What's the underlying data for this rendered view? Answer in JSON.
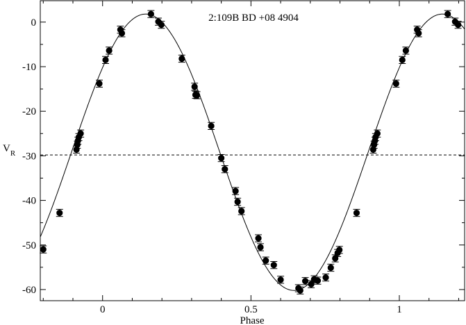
{
  "chart_data": {
    "type": "scatter",
    "title": "2:109B   BD +08 4904",
    "xlabel": "Phase",
    "ylabel_main": "V",
    "ylabel_sub": "R",
    "xlim": [
      -0.21,
      1.22
    ],
    "ylim": [
      -62.5,
      4.8
    ],
    "x_ticks": [
      0,
      0.5,
      1
    ],
    "x_tick_labels": [
      "0",
      "0.5",
      "1"
    ],
    "y_ticks": [
      0,
      -10,
      -20,
      -30,
      -40,
      -50,
      -60
    ],
    "y_tick_labels": [
      "0",
      "-10",
      "-20",
      "-30",
      "-40",
      "-50",
      "-60"
    ],
    "reference_line_y": -29.8,
    "fit_curve": {
      "type": "sinusoid",
      "gamma": -29.2,
      "amplitude": 31.0,
      "peak_phase": 0.145,
      "x_range": [
        -0.21,
        1.22
      ]
    },
    "series": [
      {
        "marker": "filled-circle",
        "error": 0.8,
        "x": [
          -0.2,
          -0.145,
          -0.088,
          -0.085,
          -0.083,
          -0.08,
          -0.074,
          -0.011,
          0.01,
          0.022,
          0.06,
          0.065,
          0.163,
          0.188,
          0.198,
          0.267,
          0.31,
          0.313,
          0.318,
          0.366,
          0.4,
          0.412,
          0.448,
          0.455,
          0.468,
          0.525,
          0.532,
          0.55,
          0.577,
          0.6,
          0.66,
          0.666,
          0.683,
          0.703,
          0.713,
          0.725,
          0.752,
          0.769,
          0.784,
          0.792,
          0.798,
          0.856,
          0.912,
          0.915,
          0.918,
          0.92,
          0.926,
          0.989,
          1.01,
          1.022,
          1.06,
          1.065,
          1.163,
          1.188,
          1.198
        ],
        "y": [
          -51,
          -42.8,
          -28.6,
          -27.5,
          -26.6,
          -25.8,
          -25,
          -13.8,
          -8.5,
          -6.4,
          -1.7,
          -2.5,
          1.8,
          0.1,
          -0.6,
          -8.2,
          -14.5,
          -16.3,
          -16.4,
          -23.3,
          -30.5,
          -33,
          -37.9,
          -40.3,
          -42.4,
          -48.5,
          -50.5,
          -53.5,
          -54.5,
          -57.8,
          -59.7,
          -60.2,
          -58.1,
          -58.8,
          -57.7,
          -58,
          -57.3,
          -55.1,
          -53,
          -51.8,
          -51.1,
          -42.8,
          -28.6,
          -27.5,
          -26.6,
          -25.8,
          -25,
          -13.8,
          -8.5,
          -6.4,
          -1.7,
          -2.5,
          1.8,
          0.1,
          -0.6
        ]
      }
    ]
  }
}
